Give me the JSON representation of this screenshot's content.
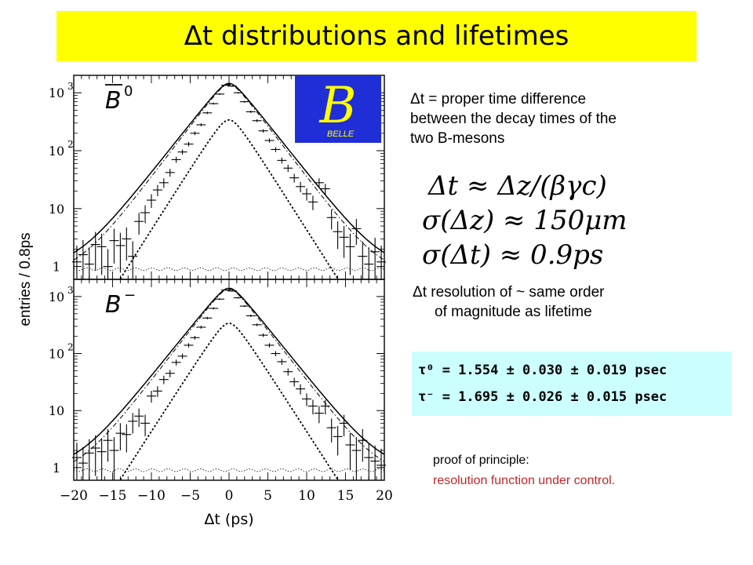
{
  "title": "Δt distributions and lifetimes",
  "definition": {
    "line1": "Δt = proper time difference",
    "line2": "between the decay times of the",
    "line3": "two B-mesons"
  },
  "formulas": {
    "f1": "Δt ≈ Δz/(βγc)",
    "f2": "σ(Δz) ≈ 150μm",
    "f3": "σ(Δt) ≈ 0.9ps"
  },
  "resolution_note": {
    "line1": "Δt resolution of ~ same order",
    "line2": "of magnitude as lifetime"
  },
  "lifetimes": {
    "tau0": "τ⁰ = 1.554 ± 0.030 ± 0.019 psec",
    "taum": "τ⁻ = 1.695 ± 0.026 ± 0.015 psec"
  },
  "proof": {
    "line1": "proof of principle:",
    "line2": "resolution function under control."
  },
  "logo": {
    "big": "B",
    "small": "BELLE"
  },
  "colors": {
    "title_bg": "#ffff00",
    "box_bg": "#ccffff",
    "logo_bg": "#1f2ed6",
    "logo_fg": "#ffff00",
    "red": "#c0272d"
  },
  "chart_data": {
    "type": "scatter",
    "xlabel": "Δt (ps)",
    "ylabel": "entries / 0.8ps",
    "xlim": [
      -20,
      20
    ],
    "x_ticks": [
      "−20",
      "−15",
      "−10",
      "−5",
      "0",
      "5",
      "10",
      "15",
      "20"
    ],
    "ylim": [
      0.6,
      2000
    ],
    "yscale": "log",
    "y_ticks": [
      1,
      10,
      100,
      1000
    ],
    "y_tick_labels": [
      {
        "base": "1",
        "exp": ""
      },
      {
        "base": "10",
        "exp": ""
      },
      {
        "base": "10",
        "exp": "2"
      },
      {
        "base": "10",
        "exp": "3"
      }
    ],
    "panels": [
      {
        "label": "B̄⁰",
        "label_base": "B",
        "label_sup": "0",
        "overline": true,
        "peak": 1450,
        "signal_peak": 340,
        "data": [
          [
            -19.6,
            1.2
          ],
          [
            -18.8,
            1.6
          ],
          [
            -18.0,
            1.1
          ],
          [
            -17.2,
            2.4
          ],
          [
            -16.4,
            2.2
          ],
          [
            -15.6,
            1.0
          ],
          [
            -14.8,
            2.8
          ],
          [
            -14.0,
            2.3
          ],
          [
            -13.2,
            3.0
          ],
          [
            -12.4,
            1.5
          ],
          [
            -11.6,
            6.0
          ],
          [
            -10.8,
            8.5
          ],
          [
            -10.0,
            14
          ],
          [
            -9.2,
            21
          ],
          [
            -8.4,
            28
          ],
          [
            -7.6,
            42
          ],
          [
            -6.8,
            70
          ],
          [
            -6.0,
            95
          ],
          [
            -5.2,
            130
          ],
          [
            -4.4,
            200
          ],
          [
            -3.6,
            280
          ],
          [
            -2.8,
            450
          ],
          [
            -2.0,
            650
          ],
          [
            -1.2,
            950
          ],
          [
            -0.4,
            1350
          ],
          [
            0.4,
            1300
          ],
          [
            1.2,
            1000
          ],
          [
            2.0,
            700
          ],
          [
            2.8,
            470
          ],
          [
            3.6,
            330
          ],
          [
            4.4,
            220
          ],
          [
            5.2,
            150
          ],
          [
            6.0,
            105
          ],
          [
            6.8,
            68
          ],
          [
            7.6,
            50
          ],
          [
            8.4,
            34
          ],
          [
            9.2,
            24
          ],
          [
            10.0,
            18
          ],
          [
            10.8,
            13
          ],
          [
            11.6,
            28
          ],
          [
            12.4,
            22
          ],
          [
            13.2,
            7
          ],
          [
            14.0,
            4
          ],
          [
            14.8,
            3.2
          ],
          [
            15.6,
            2.2
          ],
          [
            16.4,
            4.5
          ],
          [
            17.2,
            1.5
          ],
          [
            18.0,
            1.1
          ],
          [
            18.8,
            1.8
          ],
          [
            19.6,
            1.2
          ]
        ]
      },
      {
        "label": "B⁻",
        "label_base": "B",
        "label_sup": "−",
        "overline": false,
        "peak": 1400,
        "signal_peak": 340,
        "data": [
          [
            -19.6,
            1.5
          ],
          [
            -18.8,
            1.2
          ],
          [
            -18.0,
            1.8
          ],
          [
            -17.2,
            2.2
          ],
          [
            -16.4,
            1.9
          ],
          [
            -15.6,
            3.0
          ],
          [
            -14.8,
            2.0
          ],
          [
            -14.0,
            4.0
          ],
          [
            -13.2,
            3.8
          ],
          [
            -12.4,
            6.5
          ],
          [
            -11.6,
            8.0
          ],
          [
            -10.8,
            6.0
          ],
          [
            -10.0,
            18
          ],
          [
            -9.2,
            22
          ],
          [
            -8.4,
            35
          ],
          [
            -7.6,
            45
          ],
          [
            -6.8,
            70
          ],
          [
            -6.0,
            90
          ],
          [
            -5.2,
            140
          ],
          [
            -4.4,
            190
          ],
          [
            -3.6,
            290
          ],
          [
            -2.8,
            420
          ],
          [
            -2.0,
            620
          ],
          [
            -1.2,
            900
          ],
          [
            -0.4,
            1300
          ],
          [
            0.4,
            1250
          ],
          [
            1.2,
            950
          ],
          [
            2.0,
            680
          ],
          [
            2.8,
            460
          ],
          [
            3.6,
            320
          ],
          [
            4.4,
            210
          ],
          [
            5.2,
            140
          ],
          [
            6.0,
            100
          ],
          [
            6.8,
            72
          ],
          [
            7.6,
            48
          ],
          [
            8.4,
            32
          ],
          [
            9.2,
            24
          ],
          [
            10.0,
            16
          ],
          [
            10.8,
            12
          ],
          [
            11.6,
            9
          ],
          [
            12.4,
            12
          ],
          [
            13.2,
            5
          ],
          [
            14.0,
            3.5
          ],
          [
            14.8,
            6
          ],
          [
            15.6,
            2.5
          ],
          [
            16.4,
            2.0
          ],
          [
            17.2,
            3.0
          ],
          [
            18.0,
            1.5
          ],
          [
            18.8,
            1.3
          ],
          [
            19.6,
            1.1
          ]
        ]
      }
    ]
  }
}
